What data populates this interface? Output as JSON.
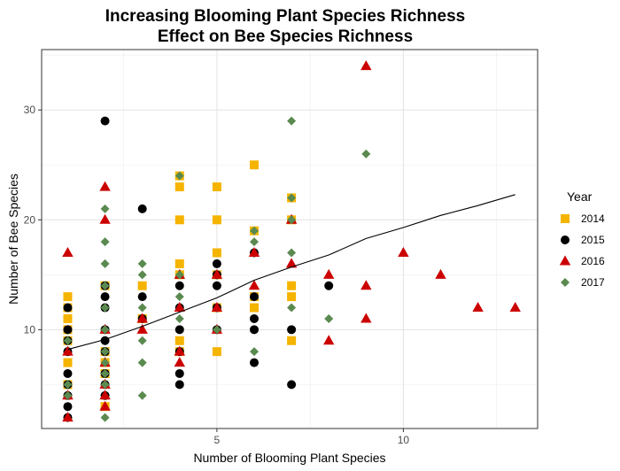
{
  "chart_data": {
    "type": "scatter",
    "title": [
      "Increasing Blooming Plant Species Richness",
      "Effect on Bee Species Richness"
    ],
    "xlabel": "Number of Blooming Plant Species",
    "ylabel": "Number of Bee Species",
    "xlim": [
      0.3,
      13.6
    ],
    "ylim": [
      1.0,
      35.5
    ],
    "x_ticks": [
      5,
      10
    ],
    "y_ticks": [
      10,
      20,
      30
    ],
    "grid": true,
    "legend": {
      "title": "Year",
      "position": "right"
    },
    "series": [
      {
        "name": "2014",
        "color": "#F5B400",
        "marker": "square",
        "points": [
          [
            1,
            13
          ],
          [
            1,
            12
          ],
          [
            1,
            11
          ],
          [
            1,
            10
          ],
          [
            1,
            9
          ],
          [
            1,
            7
          ],
          [
            1,
            5
          ],
          [
            2,
            14
          ],
          [
            2,
            8
          ],
          [
            2,
            7
          ],
          [
            2,
            6
          ],
          [
            2,
            3
          ],
          [
            3,
            14
          ],
          [
            3,
            11
          ],
          [
            4,
            24
          ],
          [
            4,
            23
          ],
          [
            4,
            20
          ],
          [
            4,
            16
          ],
          [
            4,
            15
          ],
          [
            4,
            9
          ],
          [
            4,
            8
          ],
          [
            5,
            23
          ],
          [
            5,
            20
          ],
          [
            5,
            17
          ],
          [
            5,
            15
          ],
          [
            5,
            12
          ],
          [
            5,
            8
          ],
          [
            6,
            25
          ],
          [
            6,
            19
          ],
          [
            6,
            13
          ],
          [
            6,
            12
          ],
          [
            7,
            22
          ],
          [
            7,
            20
          ],
          [
            7,
            14
          ],
          [
            7,
            13
          ],
          [
            7,
            9
          ]
        ]
      },
      {
        "name": "2015",
        "color": "#000000",
        "marker": "circle",
        "points": [
          [
            1,
            12
          ],
          [
            1,
            10
          ],
          [
            1,
            9
          ],
          [
            1,
            8
          ],
          [
            1,
            6
          ],
          [
            1,
            5
          ],
          [
            1,
            4
          ],
          [
            1,
            3
          ],
          [
            1,
            2
          ],
          [
            2,
            29
          ],
          [
            2,
            14
          ],
          [
            2,
            13
          ],
          [
            2,
            12
          ],
          [
            2,
            10
          ],
          [
            2,
            9
          ],
          [
            2,
            8
          ],
          [
            2,
            6
          ],
          [
            2,
            5
          ],
          [
            2,
            4
          ],
          [
            3,
            21
          ],
          [
            3,
            13
          ],
          [
            3,
            11
          ],
          [
            4,
            14
          ],
          [
            4,
            12
          ],
          [
            4,
            10
          ],
          [
            4,
            8
          ],
          [
            4,
            6
          ],
          [
            4,
            5
          ],
          [
            5,
            16
          ],
          [
            5,
            15
          ],
          [
            5,
            14
          ],
          [
            5,
            12
          ],
          [
            5,
            10
          ],
          [
            6,
            17
          ],
          [
            6,
            13
          ],
          [
            6,
            11
          ],
          [
            6,
            10
          ],
          [
            6,
            7
          ],
          [
            7,
            10
          ],
          [
            7,
            5
          ],
          [
            8,
            14
          ]
        ]
      },
      {
        "name": "2016",
        "color": "#CC0000",
        "marker": "triangle",
        "points": [
          [
            1,
            17
          ],
          [
            1,
            8
          ],
          [
            1,
            4
          ],
          [
            1,
            2
          ],
          [
            2,
            23
          ],
          [
            2,
            20
          ],
          [
            2,
            10
          ],
          [
            2,
            7
          ],
          [
            2,
            5
          ],
          [
            2,
            4
          ],
          [
            2,
            3
          ],
          [
            3,
            11
          ],
          [
            3,
            10
          ],
          [
            4,
            15
          ],
          [
            4,
            12
          ],
          [
            4,
            8
          ],
          [
            4,
            7
          ],
          [
            5,
            15
          ],
          [
            5,
            12
          ],
          [
            5,
            10
          ],
          [
            6,
            17
          ],
          [
            6,
            14
          ],
          [
            7,
            20
          ],
          [
            7,
            16
          ],
          [
            8,
            15
          ],
          [
            8,
            9
          ],
          [
            9,
            34
          ],
          [
            9,
            14
          ],
          [
            9,
            11
          ],
          [
            10,
            17
          ],
          [
            11,
            15
          ],
          [
            12,
            12
          ],
          [
            13,
            12
          ]
        ]
      },
      {
        "name": "2017",
        "color": "#5A8A4F",
        "marker": "diamond",
        "points": [
          [
            1,
            9
          ],
          [
            1,
            5
          ],
          [
            1,
            4
          ],
          [
            2,
            21
          ],
          [
            2,
            18
          ],
          [
            2,
            16
          ],
          [
            2,
            14
          ],
          [
            2,
            12
          ],
          [
            2,
            10
          ],
          [
            2,
            8
          ],
          [
            2,
            7
          ],
          [
            2,
            6
          ],
          [
            2,
            5
          ],
          [
            2,
            2
          ],
          [
            3,
            16
          ],
          [
            3,
            15
          ],
          [
            3,
            12
          ],
          [
            3,
            9
          ],
          [
            3,
            7
          ],
          [
            3,
            4
          ],
          [
            4,
            24
          ],
          [
            4,
            15
          ],
          [
            4,
            13
          ],
          [
            4,
            11
          ],
          [
            5,
            10
          ],
          [
            6,
            19
          ],
          [
            6,
            18
          ],
          [
            6,
            8
          ],
          [
            7,
            29
          ],
          [
            7,
            22
          ],
          [
            7,
            20
          ],
          [
            7,
            17
          ],
          [
            7,
            12
          ],
          [
            8,
            11
          ],
          [
            9,
            26
          ]
        ]
      }
    ],
    "trend_line": [
      [
        1,
        8.2
      ],
      [
        2,
        9.1
      ],
      [
        3,
        10.3
      ],
      [
        4,
        11.6
      ],
      [
        5,
        12.9
      ],
      [
        6,
        14.5
      ],
      [
        7,
        15.7
      ],
      [
        8,
        16.8
      ],
      [
        9,
        18.3
      ],
      [
        10,
        19.3
      ],
      [
        11,
        20.4
      ],
      [
        12,
        21.3
      ],
      [
        13,
        22.3
      ]
    ]
  }
}
